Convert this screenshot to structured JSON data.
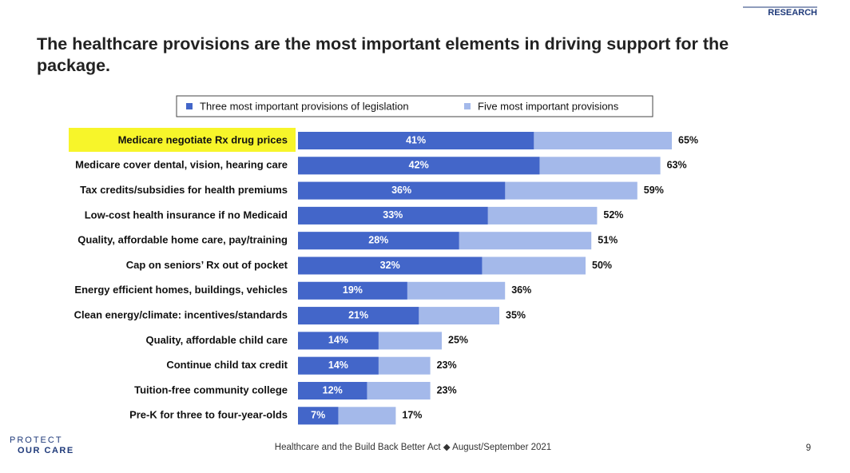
{
  "chart_data": {
    "type": "bar",
    "orientation": "horizontal",
    "title": "The healthcare provisions are the most important elements in driving support for the package.",
    "categories": [
      "Medicare negotiate Rx drug prices",
      "Medicare cover dental, vision, hearing care",
      "Tax credits/subsidies for health premiums",
      "Low-cost health insurance if no Medicaid",
      "Quality, affordable home care, pay/training",
      "Cap on seniors’ Rx out of pocket",
      "Energy efficient homes, buildings, vehicles",
      "Clean energy/climate: incentives/standards",
      "Quality, affordable child care",
      "Continue child tax credit",
      "Tuition-free community college",
      "Pre-K for three to four-year-olds"
    ],
    "series": [
      {
        "name": "Three most important provisions of legislation",
        "color": "#4366c9",
        "values": [
          41,
          42,
          36,
          33,
          28,
          32,
          19,
          21,
          14,
          14,
          12,
          7
        ],
        "value_labels": [
          "41%",
          "42%",
          "36%",
          "33%",
          "28%",
          "32%",
          "19%",
          "21%",
          "14%",
          "14%",
          "12%",
          "7%"
        ]
      },
      {
        "name": "Five most important provisions",
        "color": "#a4b9ea",
        "values": [
          65,
          63,
          59,
          52,
          51,
          50,
          36,
          35,
          25,
          23,
          23,
          17
        ],
        "value_labels": [
          "65%",
          "63%",
          "59%",
          "52%",
          "51%",
          "50%",
          "36%",
          "35%",
          "25%",
          "23%",
          "23%",
          "17%"
        ]
      }
    ],
    "legend": "top"
  },
  "footer": {
    "text": "Healthcare and the Build Back Better Act ◆ August/September 2021",
    "page": "9",
    "logo_left": [
      "PROTECT",
      "OUR CARE"
    ],
    "logo_right": "RESEARCH"
  }
}
